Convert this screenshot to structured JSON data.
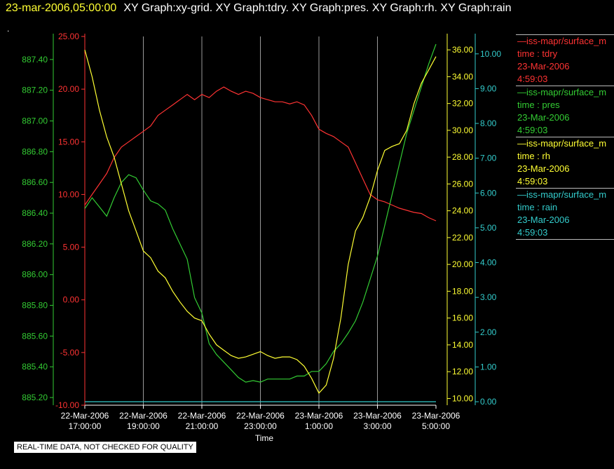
{
  "header": {
    "timestamp": "23-mar-2006,05:00:00",
    "graphs": "XY Graph:xy-grid.  XY Graph:tdry.  XY Graph:pres.  XY Graph:rh.  XY Graph:rain",
    "marker": "."
  },
  "footer": {
    "notice": "REAL-TIME DATA, NOT CHECKED FOR QUALITY"
  },
  "legend": [
    {
      "source": "—iss-mapr/surface_m",
      "field": "time : tdry",
      "date": "23-Mar-2006",
      "time": "4:59:03",
      "color": "#ff3333"
    },
    {
      "source": "—iss-mapr/surface_m",
      "field": "time : pres",
      "date": "23-Mar-2006",
      "time": "4:59:03",
      "color": "#33cc33"
    },
    {
      "source": "—iss-mapr/surface_m",
      "field": "time : rh",
      "date": "23-Mar-2006",
      "time": "4:59:03",
      "color": "#ffff33"
    },
    {
      "source": "—iss-mapr/surface_m",
      "field": "time : rain",
      "date": "23-Mar-2006",
      "time": "4:59:03",
      "color": "#33cccc"
    }
  ],
  "chart_data": {
    "type": "line",
    "xlabel": "Time",
    "x_ticks": [
      {
        "line1": "22-Mar-2006",
        "line2": "17:00:00"
      },
      {
        "line1": "22-Mar-2006",
        "line2": "19:00:00"
      },
      {
        "line1": "22-Mar-2006",
        "line2": "21:00:00"
      },
      {
        "line1": "22-Mar-2006",
        "line2": "23:00:00"
      },
      {
        "line1": "23-Mar-2006",
        "line2": "1:00:00"
      },
      {
        "line1": "23-Mar-2006",
        "line2": "3:00:00"
      },
      {
        "line1": "23-Mar-2006",
        "line2": "5:00:00"
      }
    ],
    "x_range_hours": [
      17,
      29
    ],
    "grid": true,
    "axes": {
      "pres": {
        "color": "#33cc33",
        "range": [
          885.15,
          887.55
        ],
        "ticks": [
          "885.20",
          "885.40",
          "885.60",
          "885.80",
          "886.00",
          "886.20",
          "886.40",
          "886.60",
          "886.80",
          "887.00",
          "887.20",
          "887.40"
        ]
      },
      "tdry": {
        "color": "#ff3333",
        "range": [
          -10,
          25
        ],
        "ticks": [
          "-10.00",
          "-5.00",
          "0.00",
          "5.00",
          "10.00",
          "15.00",
          "20.00",
          "25.00"
        ]
      },
      "rh": {
        "color": "#ffff33",
        "range": [
          9.5,
          37
        ],
        "ticks": [
          "10.00",
          "12.00",
          "14.00",
          "16.00",
          "18.00",
          "20.00",
          "22.00",
          "24.00",
          "26.00",
          "28.00",
          "30.00",
          "32.00",
          "34.00",
          "36.00"
        ]
      },
      "rain": {
        "color": "#33cccc",
        "range": [
          -0.1,
          10.5
        ],
        "ticks": [
          "0.00",
          "1.00",
          "2.00",
          "3.00",
          "4.00",
          "5.00",
          "6.00",
          "7.00",
          "8.00",
          "9.00",
          "10.00"
        ]
      }
    },
    "series": [
      {
        "name": "tdry",
        "axis": "tdry",
        "color": "#ff3333",
        "x": [
          17.0,
          17.25,
          17.5,
          17.75,
          18.0,
          18.25,
          18.5,
          18.75,
          19.0,
          19.25,
          19.5,
          19.75,
          20.0,
          20.25,
          20.5,
          20.75,
          21.0,
          21.25,
          21.5,
          21.75,
          22.0,
          22.25,
          22.5,
          22.75,
          23.0,
          23.25,
          23.5,
          23.75,
          24.0,
          24.25,
          24.5,
          24.75,
          25.0,
          25.25,
          25.5,
          25.75,
          26.0,
          26.25,
          26.5,
          26.75,
          27.0,
          27.25,
          27.5,
          27.75,
          28.0,
          28.25,
          28.5,
          28.75,
          29.0
        ],
        "y": [
          9.0,
          10.0,
          11.0,
          12.0,
          13.5,
          14.5,
          15.0,
          15.5,
          16.0,
          16.5,
          17.5,
          18.0,
          18.5,
          19.0,
          19.5,
          19.0,
          19.5,
          19.2,
          19.8,
          20.2,
          19.8,
          19.5,
          19.8,
          19.6,
          19.2,
          19.0,
          18.8,
          18.8,
          18.6,
          18.8,
          18.5,
          17.5,
          16.2,
          15.8,
          15.5,
          15.0,
          14.5,
          13.0,
          11.5,
          10.0,
          9.5,
          9.3,
          9.0,
          8.7,
          8.5,
          8.3,
          8.2,
          7.8,
          7.5
        ]
      },
      {
        "name": "pres",
        "axis": "pres",
        "color": "#33cc33",
        "x": [
          17.0,
          17.25,
          17.5,
          17.75,
          18.0,
          18.25,
          18.5,
          18.75,
          19.0,
          19.25,
          19.5,
          19.75,
          20.0,
          20.25,
          20.5,
          20.75,
          21.0,
          21.25,
          21.5,
          21.75,
          22.0,
          22.25,
          22.5,
          22.75,
          23.0,
          23.25,
          23.5,
          23.75,
          24.0,
          24.25,
          24.5,
          24.75,
          25.0,
          25.25,
          25.5,
          25.75,
          26.0,
          26.25,
          26.5,
          26.75,
          27.0,
          27.25,
          27.5,
          27.75,
          28.0,
          28.25,
          28.5,
          28.75,
          29.0
        ],
        "y": [
          886.43,
          886.5,
          886.44,
          886.38,
          886.5,
          886.6,
          886.65,
          886.63,
          886.55,
          886.48,
          886.46,
          886.42,
          886.3,
          886.2,
          886.1,
          885.85,
          885.75,
          885.55,
          885.48,
          885.43,
          885.38,
          885.33,
          885.3,
          885.31,
          885.3,
          885.32,
          885.32,
          885.32,
          885.32,
          885.34,
          885.34,
          885.37,
          885.37,
          885.42,
          885.5,
          885.55,
          885.62,
          885.7,
          885.82,
          885.97,
          886.12,
          886.32,
          886.52,
          886.72,
          886.92,
          887.07,
          887.22,
          887.37,
          887.5
        ]
      },
      {
        "name": "rh",
        "axis": "rh",
        "color": "#ffff33",
        "x": [
          17.0,
          17.25,
          17.5,
          17.75,
          18.0,
          18.25,
          18.5,
          18.75,
          19.0,
          19.25,
          19.5,
          19.75,
          20.0,
          20.25,
          20.5,
          20.75,
          21.0,
          21.25,
          21.5,
          21.75,
          22.0,
          22.25,
          22.5,
          22.75,
          23.0,
          23.25,
          23.5,
          23.75,
          24.0,
          24.25,
          24.5,
          24.75,
          25.0,
          25.25,
          25.5,
          25.75,
          26.0,
          26.25,
          26.5,
          26.75,
          27.0,
          27.25,
          27.5,
          27.75,
          28.0,
          28.25,
          28.5,
          28.75,
          29.0
        ],
        "y": [
          36.0,
          34.0,
          31.5,
          29.5,
          28.0,
          26.0,
          24.0,
          22.5,
          21.0,
          20.5,
          19.5,
          19.0,
          18.0,
          17.2,
          16.5,
          16.0,
          15.8,
          14.8,
          14.0,
          13.6,
          13.2,
          13.0,
          13.1,
          13.3,
          13.5,
          13.2,
          13.0,
          13.1,
          13.1,
          12.9,
          12.4,
          11.5,
          10.4,
          11.0,
          13.0,
          16.0,
          20.0,
          22.5,
          23.5,
          25.0,
          27.0,
          28.5,
          28.8,
          29.0,
          30.0,
          32.0,
          33.5,
          34.5,
          35.5
        ]
      },
      {
        "name": "rain",
        "axis": "rain",
        "color": "#33cccc",
        "x": [
          17.0,
          29.0
        ],
        "y": [
          0.0,
          0.0
        ]
      }
    ]
  }
}
